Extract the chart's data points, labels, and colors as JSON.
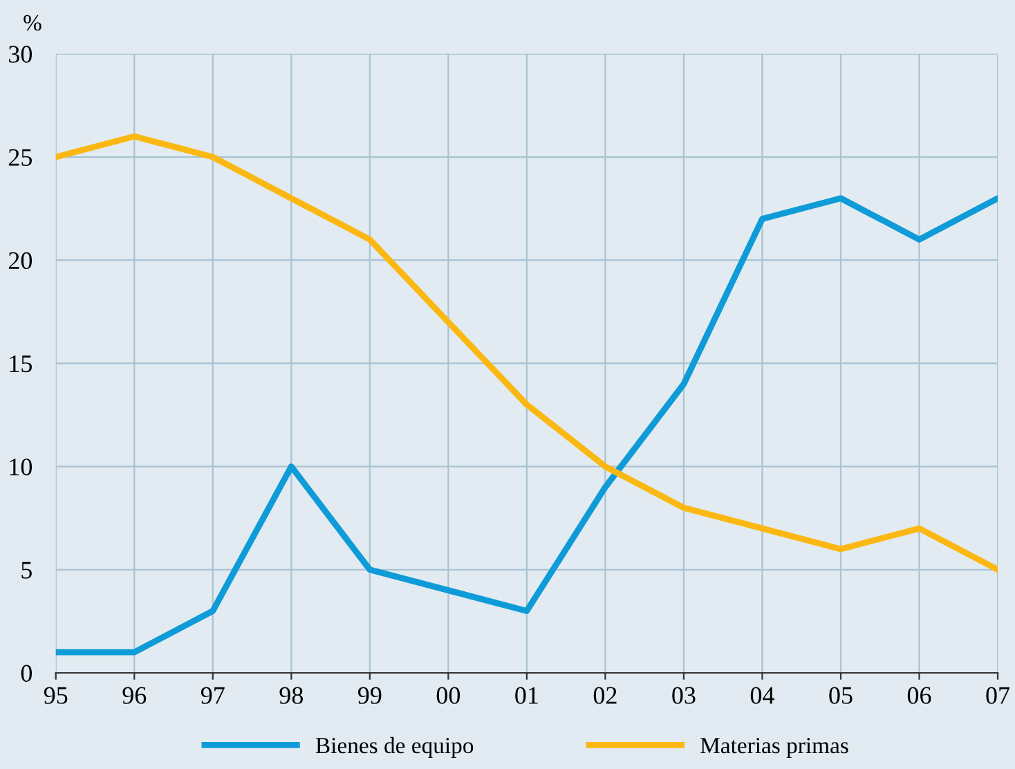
{
  "chart_data": {
    "type": "line",
    "ylabel": "%",
    "categories": [
      "95",
      "96",
      "97",
      "98",
      "99",
      "00",
      "01",
      "02",
      "03",
      "04",
      "05",
      "06",
      "07"
    ],
    "series": [
      {
        "name": "Bienes de equipo",
        "color": "#0e9bd8",
        "values": [
          1,
          1,
          3,
          10,
          5,
          4,
          3,
          9,
          14,
          22,
          23,
          21,
          23
        ]
      },
      {
        "name": "Materias primas",
        "color": "#fbb813",
        "values": [
          25,
          26,
          25,
          23,
          21,
          17,
          13,
          10,
          8,
          7,
          6,
          7,
          5
        ]
      }
    ],
    "ylim": [
      0,
      30
    ],
    "yticks": [
      0,
      5,
      10,
      15,
      20,
      25,
      30
    ],
    "grid": true,
    "legend": "bottom",
    "marker": "none",
    "line_style": "solid"
  }
}
